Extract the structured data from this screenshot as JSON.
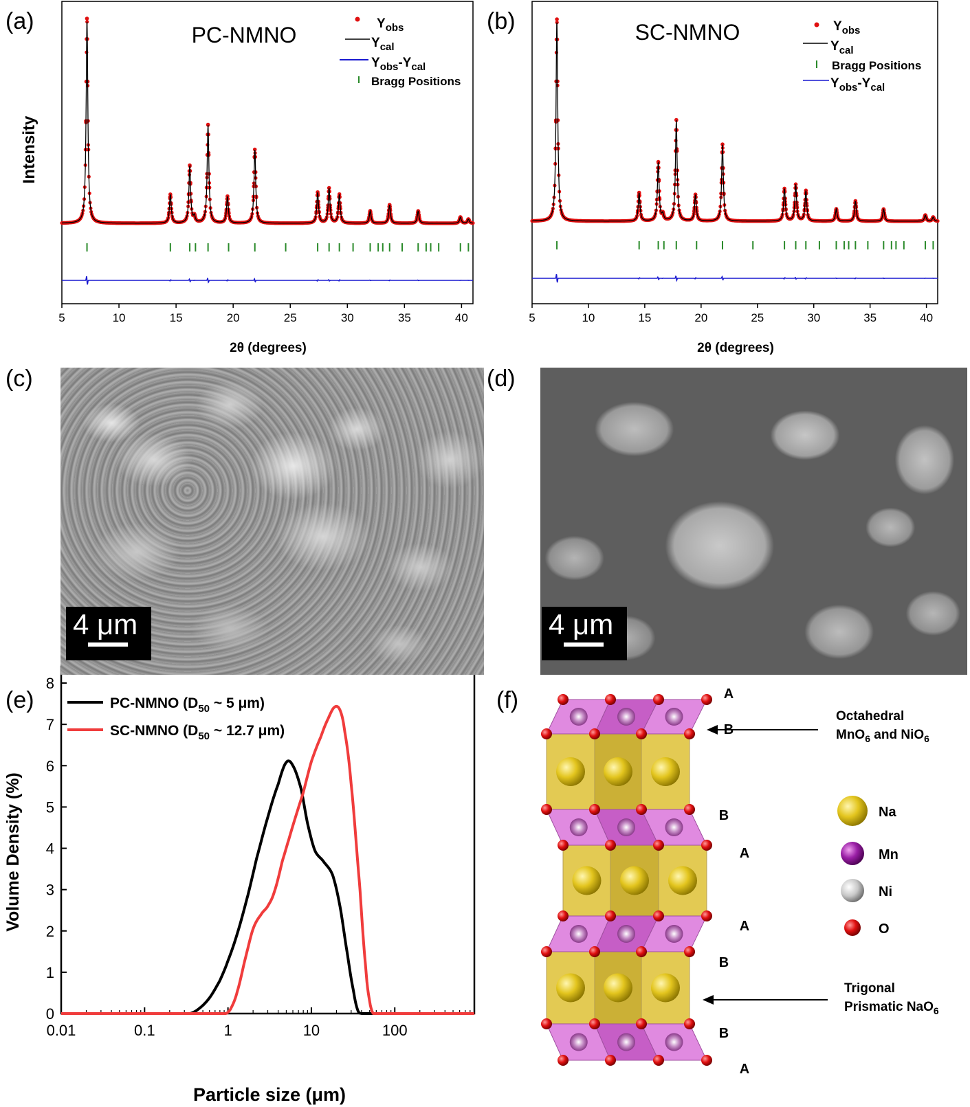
{
  "panels": {
    "a": "(a)",
    "b": "(b)",
    "c": "(c)",
    "d": "(d)",
    "e": "(e)",
    "f": "(f)"
  },
  "chart_data": [
    {
      "type": "line",
      "id": "a",
      "title": "PC-NMNO",
      "xlabel": "2θ (degrees)",
      "ylabel": "Intensity",
      "xlim": [
        5,
        41
      ],
      "xticks": [
        5,
        10,
        15,
        20,
        25,
        30,
        35,
        40
      ],
      "legend": {
        "position": "top-right",
        "items": [
          {
            "base": "Y",
            "sub": "obs",
            "marker": "red-dot"
          },
          {
            "base": "Y",
            "sub": "cal",
            "marker": "black-line"
          },
          {
            "base": "Y",
            "sub": "obs",
            "mid": "-Y",
            "sub2": "cal",
            "marker": "blue-line"
          },
          {
            "base": "Bragg Positions",
            "marker": "green-tick"
          }
        ]
      },
      "peaks": [
        {
          "x": 7.2,
          "h": 1.0
        },
        {
          "x": 14.5,
          "h": 0.14
        },
        {
          "x": 16.2,
          "h": 0.28
        },
        {
          "x": 16.6,
          "h": 0.03
        },
        {
          "x": 17.8,
          "h": 0.48
        },
        {
          "x": 19.5,
          "h": 0.13
        },
        {
          "x": 21.9,
          "h": 0.36
        },
        {
          "x": 27.4,
          "h": 0.15
        },
        {
          "x": 28.4,
          "h": 0.17
        },
        {
          "x": 29.3,
          "h": 0.14
        },
        {
          "x": 32.0,
          "h": 0.06
        },
        {
          "x": 33.7,
          "h": 0.09
        },
        {
          "x": 36.2,
          "h": 0.06
        },
        {
          "x": 39.9,
          "h": 0.03
        },
        {
          "x": 40.6,
          "h": 0.02
        }
      ],
      "bragg": [
        7.2,
        14.5,
        16.2,
        16.7,
        17.8,
        19.6,
        21.9,
        24.6,
        27.4,
        28.4,
        29.3,
        30.5,
        32.0,
        32.7,
        33.1,
        33.7,
        34.8,
        36.2,
        36.9,
        37.3,
        38.0,
        39.9,
        40.6
      ]
    },
    {
      "type": "line",
      "id": "b",
      "title": "SC-NMNO",
      "xlabel": "2θ (degrees)",
      "ylabel": "",
      "xlim": [
        5,
        41
      ],
      "xticks": [
        5,
        10,
        15,
        20,
        25,
        30,
        35,
        40
      ],
      "legend": {
        "position": "top-right",
        "items": [
          {
            "base": "Y",
            "sub": "obs",
            "marker": "red-dot"
          },
          {
            "base": "Y",
            "sub": "cal",
            "marker": "black-line"
          },
          {
            "base": "Bragg Positions",
            "marker": "green-tick"
          },
          {
            "base": "Y",
            "sub": "obs",
            "mid": "-Y",
            "sub2": "cal",
            "marker": "blue-line"
          }
        ]
      },
      "peaks": [
        {
          "x": 7.2,
          "h": 1.0
        },
        {
          "x": 14.5,
          "h": 0.14
        },
        {
          "x": 16.2,
          "h": 0.29
        },
        {
          "x": 16.6,
          "h": 0.03
        },
        {
          "x": 17.8,
          "h": 0.5
        },
        {
          "x": 19.5,
          "h": 0.13
        },
        {
          "x": 21.9,
          "h": 0.38
        },
        {
          "x": 27.4,
          "h": 0.16
        },
        {
          "x": 28.4,
          "h": 0.18
        },
        {
          "x": 29.3,
          "h": 0.15
        },
        {
          "x": 32.0,
          "h": 0.06
        },
        {
          "x": 33.7,
          "h": 0.1
        },
        {
          "x": 36.2,
          "h": 0.06
        },
        {
          "x": 39.9,
          "h": 0.03
        },
        {
          "x": 40.6,
          "h": 0.02
        }
      ],
      "bragg": [
        7.2,
        14.5,
        16.2,
        16.7,
        17.8,
        19.6,
        21.9,
        24.6,
        27.4,
        28.4,
        29.3,
        30.5,
        32.0,
        32.7,
        33.1,
        33.7,
        34.8,
        36.2,
        36.9,
        37.3,
        38.0,
        39.9,
        40.6
      ]
    },
    {
      "type": "line",
      "id": "e",
      "xlabel": "Particle size (μm)",
      "ylabel": "Volume Density (%)",
      "xscale": "log",
      "xlim": [
        0.01,
        900
      ],
      "ylim": [
        0,
        8.4
      ],
      "xticks": [
        "0.01",
        "0.1",
        "1",
        "10",
        "100"
      ],
      "yticks": [
        0,
        1,
        2,
        3,
        4,
        5,
        6,
        7,
        8
      ],
      "legend": {
        "position": "top-left"
      },
      "series": [
        {
          "name": "PC-NMNO (D50 ~ 5 μm)",
          "label_main": "PC-NMNO (D",
          "label_sub": "50",
          "label_tail": " ~ 5 μm)",
          "color": "#000000",
          "x": [
            0.01,
            0.35,
            0.45,
            0.6,
            0.8,
            1.0,
            1.3,
            1.7,
            2.2,
            3.0,
            4.0,
            5.0,
            6.0,
            7.5,
            9.0,
            11.0,
            14.0,
            18.0,
            22.0,
            27.0,
            32.0,
            36.0,
            40.0,
            900
          ],
          "y": [
            0,
            0,
            0.12,
            0.38,
            0.8,
            1.28,
            1.95,
            2.8,
            3.75,
            4.75,
            5.55,
            6.08,
            6.0,
            5.45,
            4.6,
            3.95,
            3.68,
            3.35,
            2.6,
            1.45,
            0.55,
            0.08,
            0,
            0
          ]
        },
        {
          "name": "SC-NMNO (D50 ~ 12.7 μm)",
          "label_main": "SC-NMNO (D",
          "label_sub": "50",
          "label_tail": " ~ 12.7 μm)",
          "color": "#f03c3c",
          "x": [
            0.01,
            0.95,
            1.1,
            1.3,
            1.6,
            2.0,
            2.5,
            3.0,
            3.6,
            4.5,
            6.0,
            8.0,
            10.0,
            13.0,
            16.0,
            19.0,
            22.0,
            25.0,
            30.0,
            38.0,
            45.0,
            50.0,
            55.0,
            900
          ],
          "y": [
            0,
            0,
            0.15,
            0.55,
            1.3,
            2.05,
            2.4,
            2.6,
            2.95,
            3.7,
            4.55,
            5.35,
            6.1,
            6.7,
            7.15,
            7.42,
            7.35,
            6.85,
            5.55,
            3.1,
            1.1,
            0.3,
            0,
            0
          ]
        }
      ]
    }
  ],
  "sem": {
    "c": {
      "scale": "4 μm"
    },
    "d": {
      "scale": "4 μm"
    }
  },
  "structure": {
    "layer_labels": [
      "A",
      "B",
      "B",
      "A",
      "A",
      "B",
      "B",
      "A"
    ],
    "annotations": {
      "octahedral_line1": "Octahedral",
      "octahedral_line2": "MnO",
      "octahedral_sub1": "6",
      "octahedral_mid": " and NiO",
      "octahedral_sub2": "6",
      "trigonal_line1": "Trigonal",
      "trigonal_line2": "Prismatic NaO",
      "trigonal_sub": "6"
    },
    "legend": [
      {
        "label": "Na",
        "color": "#e3c51e"
      },
      {
        "label": "Mn",
        "color": "#9a1fa6"
      },
      {
        "label": "Ni",
        "color": "#c8c8c8"
      },
      {
        "label": "O",
        "color": "#e01010"
      }
    ]
  }
}
